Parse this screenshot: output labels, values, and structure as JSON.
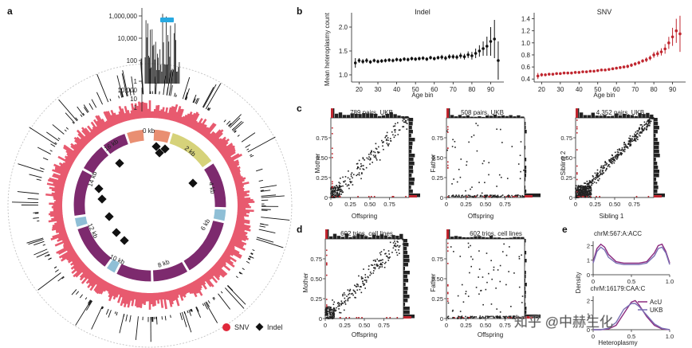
{
  "panel_labels": {
    "a": "a",
    "b": "b",
    "c": "c",
    "d": "d",
    "e": "e"
  },
  "colors": {
    "snv": "#e0283a",
    "indel": "#111111",
    "ring": "#e85a6f",
    "gene": "#7d2a6e",
    "rrna": "#d6d27a",
    "trna": "#8fbfd6",
    "highlight": "#27a9e1",
    "ucsc": "#e98f72",
    "acu": "#8b2a7f",
    "ukb": "#7a6fb3"
  },
  "panel_a": {
    "yaxis_ticks": [
      "1,000,000",
      "10,000",
      "100",
      "1"
    ],
    "inner_ticks": [
      "10,000",
      "10",
      "1"
    ],
    "kb_labels": [
      "0 kb",
      "2 kb",
      "4 kb",
      "6 kb",
      "8 kb",
      "10 kb",
      "12 kb",
      "14 kb",
      "16 kb"
    ],
    "legend": {
      "snv": "SNV",
      "indel": "Indel"
    }
  },
  "chart_data": [
    {
      "type": "scatter",
      "panel": "b",
      "title": "Indel",
      "xlabel": "Age bin",
      "ylabel": "Mean heteroplasmy count",
      "xticks": [
        20,
        30,
        40,
        50,
        60,
        70,
        80,
        90
      ],
      "yticks": [
        1.0,
        1.5,
        2.0
      ],
      "ylim": [
        0.85,
        2.3
      ],
      "x": [
        18,
        20,
        22,
        24,
        26,
        28,
        30,
        32,
        34,
        36,
        38,
        40,
        42,
        44,
        46,
        48,
        50,
        52,
        54,
        56,
        58,
        60,
        62,
        64,
        66,
        68,
        70,
        72,
        74,
        76,
        78,
        80,
        82,
        84,
        86,
        88,
        90,
        92,
        94
      ],
      "y": [
        1.25,
        1.3,
        1.28,
        1.3,
        1.27,
        1.3,
        1.28,
        1.29,
        1.3,
        1.31,
        1.3,
        1.32,
        1.31,
        1.33,
        1.32,
        1.34,
        1.33,
        1.34,
        1.35,
        1.33,
        1.36,
        1.34,
        1.36,
        1.37,
        1.35,
        1.38,
        1.38,
        1.37,
        1.4,
        1.38,
        1.42,
        1.4,
        1.45,
        1.5,
        1.55,
        1.6,
        1.7,
        1.75,
        1.3
      ],
      "err": [
        0.1,
        0.05,
        0.05,
        0.05,
        0.04,
        0.04,
        0.04,
        0.04,
        0.04,
        0.04,
        0.04,
        0.04,
        0.04,
        0.04,
        0.04,
        0.04,
        0.04,
        0.04,
        0.04,
        0.04,
        0.04,
        0.04,
        0.04,
        0.05,
        0.05,
        0.05,
        0.05,
        0.05,
        0.06,
        0.06,
        0.07,
        0.08,
        0.1,
        0.12,
        0.15,
        0.2,
        0.3,
        0.4,
        0.4
      ]
    },
    {
      "type": "scatter",
      "panel": "b",
      "title": "SNV",
      "xlabel": "Age bin",
      "ylabel": "",
      "xticks": [
        20,
        30,
        40,
        50,
        60,
        70,
        80,
        90
      ],
      "yticks": [
        0.4,
        0.6,
        0.8,
        1.0,
        1.2,
        1.4
      ],
      "ylim": [
        0.35,
        1.5
      ],
      "x": [
        18,
        20,
        22,
        24,
        26,
        28,
        30,
        32,
        34,
        36,
        38,
        40,
        42,
        44,
        46,
        48,
        50,
        52,
        54,
        56,
        58,
        60,
        62,
        64,
        66,
        68,
        70,
        72,
        74,
        76,
        78,
        80,
        82,
        84,
        86,
        88,
        90,
        92,
        94
      ],
      "y": [
        0.45,
        0.47,
        0.47,
        0.48,
        0.48,
        0.49,
        0.49,
        0.5,
        0.5,
        0.5,
        0.51,
        0.51,
        0.52,
        0.52,
        0.53,
        0.53,
        0.54,
        0.55,
        0.55,
        0.56,
        0.57,
        0.58,
        0.59,
        0.6,
        0.61,
        0.63,
        0.65,
        0.67,
        0.7,
        0.72,
        0.75,
        0.8,
        0.82,
        0.85,
        0.9,
        1.0,
        1.1,
        1.2,
        1.15
      ],
      "err": [
        0.05,
        0.03,
        0.02,
        0.02,
        0.02,
        0.02,
        0.02,
        0.02,
        0.02,
        0.02,
        0.02,
        0.02,
        0.02,
        0.02,
        0.02,
        0.02,
        0.02,
        0.02,
        0.02,
        0.02,
        0.02,
        0.02,
        0.02,
        0.02,
        0.03,
        0.03,
        0.03,
        0.03,
        0.03,
        0.04,
        0.04,
        0.05,
        0.05,
        0.06,
        0.08,
        0.1,
        0.15,
        0.2,
        0.3
      ]
    },
    {
      "type": "scatter",
      "panel": "c",
      "title": "789 pairs, UKB",
      "xlabel": "Offspring",
      "ylabel": "Mother",
      "xticks": [
        "0",
        "0.25",
        "0.50",
        "0.75"
      ],
      "yticks": [
        "0",
        "0.25",
        "0.50",
        "0.75"
      ],
      "xlim": [
        0,
        1
      ],
      "ylim": [
        0,
        1
      ],
      "pattern": "correlated",
      "n_points": 260
    },
    {
      "type": "scatter",
      "panel": "c",
      "title": "508 pairs, UKB",
      "xlabel": "Offspring",
      "ylabel": "Father",
      "xticks": [
        "0",
        "0.25",
        "0.50",
        "0.75"
      ],
      "yticks": [
        "0",
        "0.25",
        "0.50",
        "0.75"
      ],
      "xlim": [
        0,
        1
      ],
      "ylim": [
        0,
        1
      ],
      "pattern": "x_axis",
      "n_points": 150
    },
    {
      "type": "scatter",
      "panel": "c",
      "title": "4,352 pairs, UKB",
      "xlabel": "Sibling 1",
      "ylabel": "Sibling 2",
      "xticks": [
        "0",
        "0.25",
        "0.50",
        "0.75"
      ],
      "yticks": [
        "0",
        "0.25",
        "0.50",
        "0.75"
      ],
      "xlim": [
        0,
        1
      ],
      "ylim": [
        0,
        1
      ],
      "pattern": "dense",
      "n_points": 600
    },
    {
      "type": "scatter",
      "panel": "d",
      "title": "602 trios, cell lines",
      "xlabel": "Offspring",
      "ylabel": "Mother",
      "xticks": [
        "0",
        "0.25",
        "0.50",
        "0.75"
      ],
      "yticks": [
        "0",
        "0.25",
        "0.50",
        "0.75"
      ],
      "xlim": [
        0,
        1
      ],
      "ylim": [
        0,
        1
      ],
      "pattern": "correlated",
      "n_points": 280
    },
    {
      "type": "scatter",
      "panel": "d",
      "title": "602 trios, cell lines",
      "xlabel": "Offspring",
      "ylabel": "Father",
      "xticks": [
        "0",
        "0.25",
        "0.50",
        "0.75"
      ],
      "yticks": [
        "0",
        "0.25",
        "0.50",
        "0.75"
      ],
      "xlim": [
        0,
        1
      ],
      "ylim": [
        0,
        1
      ],
      "pattern": "x_axis",
      "n_points": 180
    },
    {
      "type": "line",
      "panel": "e",
      "title": "chrM:567:A:ACC",
      "xlabel": "",
      "ylabel": "Density",
      "xticks": [
        "0",
        "0.5",
        "1.0"
      ],
      "yticks": [
        "0",
        "1",
        "2"
      ],
      "xlim": [
        0,
        1
      ],
      "ylim": [
        0,
        2.3
      ],
      "x": [
        0,
        0.05,
        0.1,
        0.15,
        0.2,
        0.3,
        0.4,
        0.5,
        0.6,
        0.7,
        0.8,
        0.85,
        0.9,
        0.95,
        1.0
      ],
      "series": [
        {
          "name": "AcU",
          "values": [
            0.9,
            1.8,
            2.1,
            1.9,
            1.4,
            0.9,
            0.8,
            0.8,
            0.8,
            0.9,
            1.5,
            2.0,
            2.1,
            1.6,
            0.8
          ]
        },
        {
          "name": "UKB",
          "values": [
            0.8,
            1.6,
            1.9,
            1.7,
            1.2,
            0.8,
            0.7,
            0.7,
            0.7,
            0.8,
            1.3,
            1.8,
            1.9,
            1.5,
            0.7
          ]
        }
      ]
    },
    {
      "type": "line",
      "panel": "e",
      "title": "chrM:16179:CAA:C",
      "xlabel": "Heteroplasmy",
      "ylabel": "",
      "xticks": [
        "0",
        "0.5",
        "1.0"
      ],
      "yticks": [
        "0",
        "1",
        "2"
      ],
      "xlim": [
        0,
        1
      ],
      "ylim": [
        0,
        2.3
      ],
      "x": [
        0,
        0.1,
        0.2,
        0.3,
        0.4,
        0.5,
        0.55,
        0.6,
        0.7,
        0.8,
        0.9,
        1.0
      ],
      "series": [
        {
          "name": "AcU",
          "values": [
            0.0,
            0.0,
            0.05,
            0.3,
            1.1,
            1.9,
            2.0,
            1.7,
            0.9,
            0.3,
            0.05,
            0.0
          ]
        },
        {
          "name": "UKB",
          "values": [
            0.0,
            0.0,
            0.1,
            0.5,
            1.4,
            1.8,
            1.8,
            1.6,
            1.0,
            0.4,
            0.1,
            0.0
          ]
        }
      ],
      "legend": [
        "AcU",
        "UKB"
      ]
    }
  ],
  "watermark": "知乎 @中赫生化"
}
